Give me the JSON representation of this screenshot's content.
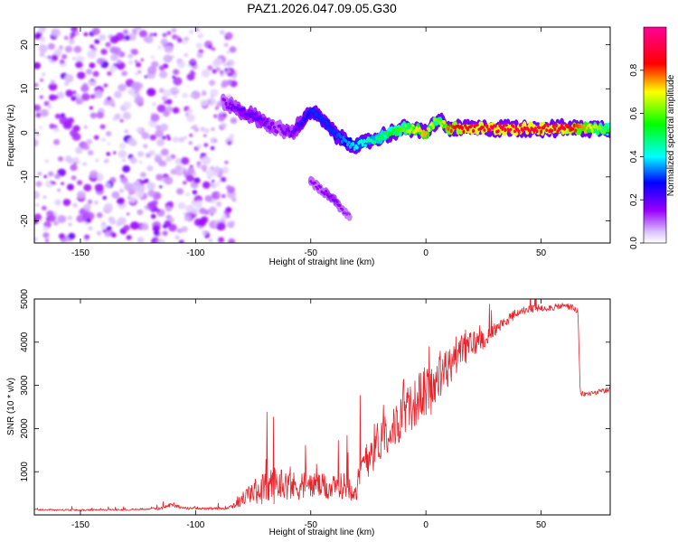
{
  "title": "PAZ1.2026.047.09.05.G30",
  "chart_data": [
    {
      "type": "heatmap",
      "name": "spectrogram",
      "xlabel": "Height of straight line (km)",
      "ylabel": "Frequency (Hz)",
      "xlim": [
        -170,
        80
      ],
      "ylim": [
        -25,
        24
      ],
      "xticks": [
        -150,
        -100,
        -50,
        0,
        50
      ],
      "yticks": [
        -20,
        -10,
        0,
        10,
        20
      ],
      "colorbar": {
        "label": "Normalized spectral amplitude",
        "range": [
          0,
          1
        ],
        "ticks": [
          0.0,
          0.2,
          0.4,
          0.6,
          0.8
        ],
        "tick_labels": [
          "0.0",
          "0.2",
          "0.4",
          "0.6",
          "0.8"
        ],
        "colormap": [
          "#ffffff",
          "#9900ff",
          "#0000ff",
          "#00ffff",
          "#00ff00",
          "#ffff00",
          "#ff0000",
          "#ff00ff"
        ]
      },
      "noise_region_km": [
        -170,
        -85
      ],
      "ridge": {
        "x": [
          -88,
          -80,
          -72,
          -65,
          -58,
          -50,
          -45,
          -40,
          -35,
          -30,
          -25,
          -20,
          -15,
          -10,
          -5,
          0,
          5,
          10,
          20,
          40,
          60,
          80
        ],
        "freq": [
          7,
          5,
          3,
          1,
          0,
          5,
          3,
          0,
          -2,
          -3,
          -2,
          -1,
          0,
          1,
          1,
          0,
          3,
          1,
          1,
          1,
          1,
          1
        ],
        "amp": [
          0.15,
          0.2,
          0.2,
          0.15,
          0.18,
          0.3,
          0.3,
          0.3,
          0.35,
          0.4,
          0.45,
          0.5,
          0.55,
          0.6,
          0.7,
          0.75,
          0.6,
          0.8,
          0.9,
          0.92,
          0.9,
          0.55
        ]
      },
      "secondary_branch": {
        "x": [
          -50,
          -45,
          -40,
          -37,
          -33
        ],
        "freq": [
          -11,
          -13,
          -15,
          -17,
          -19
        ],
        "amp": [
          0.15,
          0.15,
          0.18,
          0.15,
          0.12
        ]
      }
    },
    {
      "type": "line",
      "name": "snr",
      "xlabel": "Height of straight line (km)",
      "ylabel": "SNR (10 * v/v)",
      "xlim": [
        -170,
        80
      ],
      "ylim": [
        0,
        5000
      ],
      "xticks": [
        -150,
        -100,
        -50,
        0,
        50
      ],
      "yticks": [
        1000,
        2000,
        3000,
        4000,
        5000
      ],
      "color": "#e8232b",
      "series": [
        {
          "name": "SNR",
          "x": [
            -170,
            -150,
            -130,
            -115,
            -110,
            -105,
            -100,
            -95,
            -88,
            -82,
            -78,
            -72,
            -66,
            -62,
            -58,
            -54,
            -50,
            -45,
            -40,
            -35,
            -30,
            -26,
            -22,
            -18,
            -14,
            -10,
            -6,
            -2,
            2,
            6,
            10,
            14,
            18,
            22,
            26,
            30,
            35,
            40,
            45,
            50,
            55,
            60,
            64,
            66,
            67,
            70,
            75,
            80
          ],
          "base": [
            120,
            110,
            120,
            150,
            250,
            150,
            160,
            140,
            150,
            250,
            450,
            600,
            700,
            750,
            650,
            700,
            700,
            650,
            600,
            700,
            600,
            1400,
            1600,
            1900,
            2000,
            2300,
            2500,
            2800,
            2900,
            3200,
            3400,
            3800,
            3900,
            4000,
            4100,
            4300,
            4500,
            4700,
            4750,
            4800,
            4800,
            4850,
            4800,
            4700,
            2800,
            2800,
            2850,
            2900
          ],
          "spread": [
            40,
            40,
            40,
            60,
            120,
            60,
            60,
            60,
            60,
            200,
            400,
            700,
            900,
            700,
            700,
            700,
            600,
            600,
            600,
            600,
            700,
            1200,
            1100,
            1000,
            1000,
            1100,
            1100,
            1200,
            1200,
            1200,
            1000,
            900,
            800,
            600,
            400,
            300,
            250,
            200,
            200,
            180,
            150,
            150,
            150,
            150,
            120,
            120,
            120,
            120
          ]
        }
      ]
    }
  ]
}
